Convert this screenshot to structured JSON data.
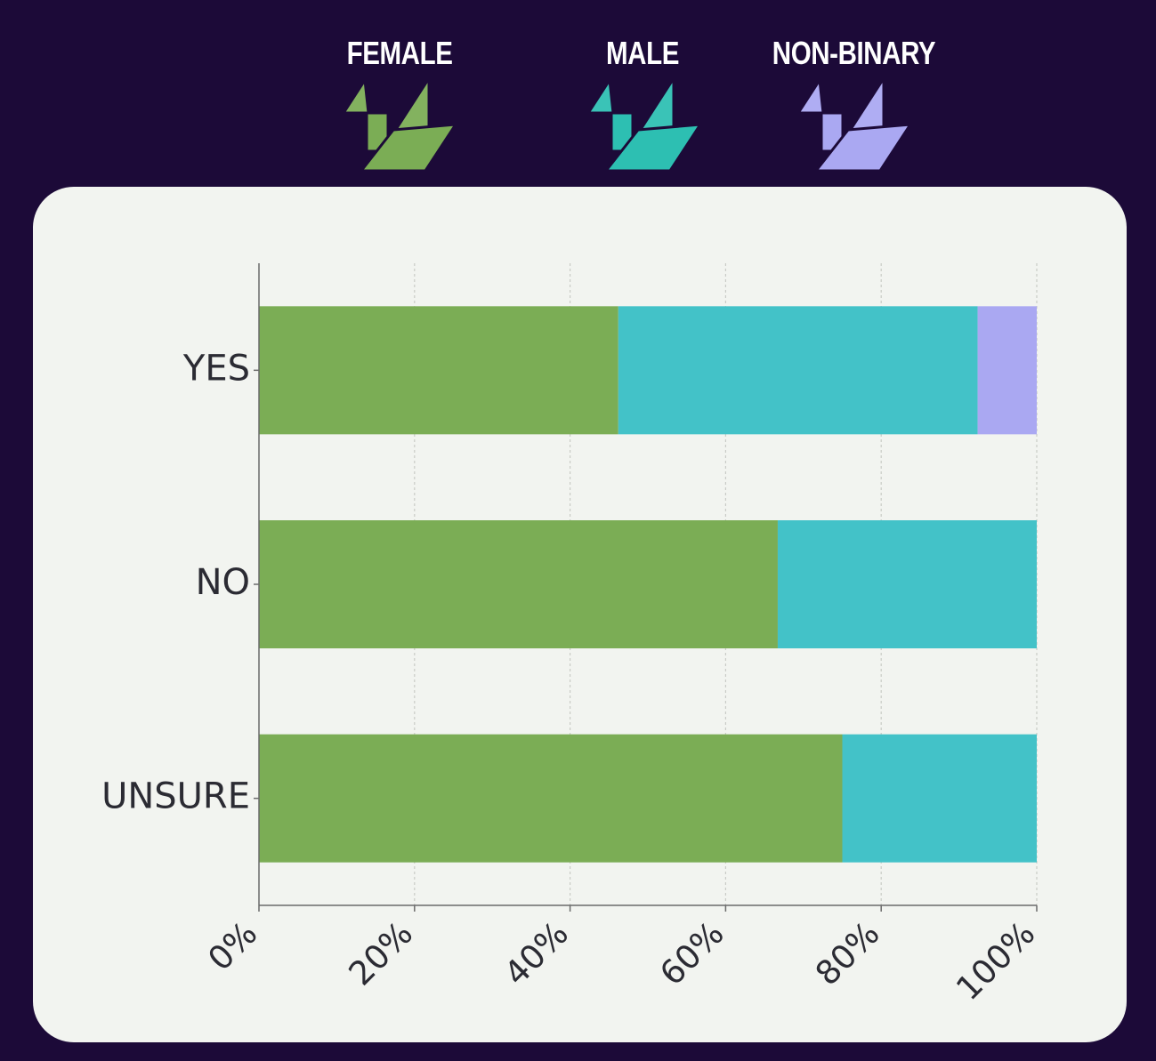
{
  "legend": [
    {
      "label": "FEMALE",
      "color": "#7bad55",
      "icon": "origami-crane-icon"
    },
    {
      "label": "MALE",
      "color": "#2dbfb2",
      "icon": "origami-crane-icon"
    },
    {
      "label": "NON-BINARY",
      "color": "#aaa8f2",
      "icon": "origami-crane-icon"
    }
  ],
  "chart_data": {
    "type": "bar",
    "orientation": "horizontal",
    "stacked": true,
    "categories": [
      "YES",
      "NO",
      "UNSURE"
    ],
    "series": [
      {
        "name": "FEMALE",
        "color": "#7bad55",
        "values": [
          46.2,
          66.7,
          75.0
        ]
      },
      {
        "name": "MALE",
        "color": "#43c2c8",
        "values": [
          46.2,
          33.3,
          25.0
        ]
      },
      {
        "name": "NON-BINARY",
        "color": "#aaa8f2",
        "values": [
          7.6,
          0,
          0
        ]
      }
    ],
    "xlim": [
      0,
      100
    ],
    "xticks": [
      "0%",
      "20%",
      "40%",
      "60%",
      "80%",
      "100%"
    ],
    "xlabel": "",
    "ylabel": "",
    "grid": "vertical dotted",
    "legend_position": "top"
  }
}
